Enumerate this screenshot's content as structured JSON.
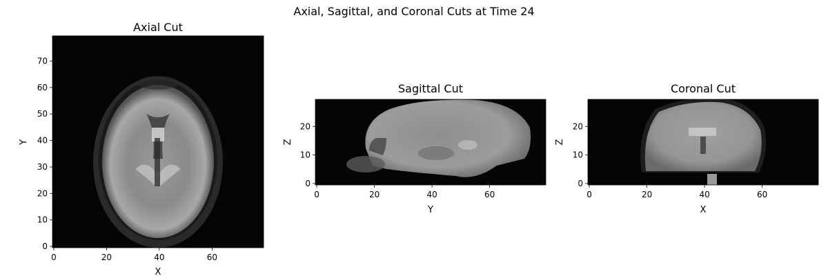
{
  "figure": {
    "title": "Axial, Sagittal, and Coronal Cuts at Time 24"
  },
  "chart_data": [
    {
      "type": "heatmap",
      "title": "Axial Cut",
      "xlabel": "X",
      "ylabel": "Y",
      "x_ticks": [
        0,
        20,
        40,
        60
      ],
      "y_ticks": [
        0,
        10,
        20,
        30,
        40,
        50,
        60,
        70
      ],
      "xlim": [
        -0.5,
        79.5
      ],
      "ylim": [
        79.5,
        -0.5
      ],
      "matrix_shape": [
        80,
        80
      ],
      "colormap": "gray",
      "grid": false
    },
    {
      "type": "heatmap",
      "title": "Sagittal Cut",
      "xlabel": "Y",
      "ylabel": "Z",
      "x_ticks": [
        0,
        20,
        40,
        60
      ],
      "y_ticks": [
        0,
        10,
        20
      ],
      "xlim": [
        -0.5,
        79.5
      ],
      "ylim": [
        29.5,
        -0.5
      ],
      "matrix_shape": [
        30,
        80
      ],
      "colormap": "gray",
      "grid": false
    },
    {
      "type": "heatmap",
      "title": "Coronal Cut",
      "xlabel": "X",
      "ylabel": "Z",
      "x_ticks": [
        0,
        20,
        40,
        60
      ],
      "y_ticks": [
        0,
        10,
        20
      ],
      "xlim": [
        -0.5,
        79.5
      ],
      "ylim": [
        29.5,
        -0.5
      ],
      "matrix_shape": [
        30,
        80
      ],
      "colormap": "gray",
      "grid": false
    }
  ]
}
